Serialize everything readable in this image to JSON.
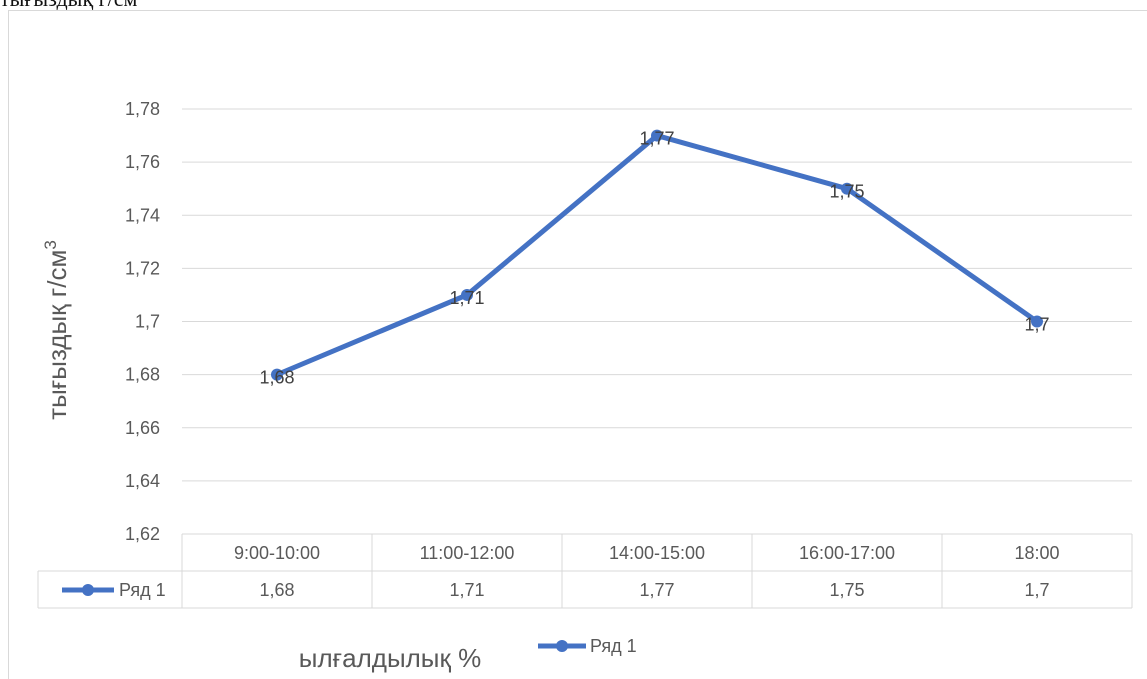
{
  "page": {
    "top_caption": "тығыздық г/см"
  },
  "chart_data": {
    "type": "line",
    "categories": [
      "9:00-10:00",
      "11:00-12:00",
      "14:00-15:00",
      "16:00-17:00",
      "18:00"
    ],
    "series": [
      {
        "name": "Ряд 1",
        "values": [
          1.68,
          1.71,
          1.77,
          1.75,
          1.7
        ],
        "color": "#4472C4"
      }
    ],
    "data_labels": [
      "1,68",
      "1,71",
      "1,77",
      "1,75",
      "1,7"
    ],
    "y_ticks": [
      "1,62",
      "1,64",
      "1,66",
      "1,68",
      "1,7",
      "1,72",
      "1,74",
      "1,76",
      "1,78"
    ],
    "ylim": [
      1.62,
      1.78
    ],
    "ylabel": "тығыздық г/см",
    "ylabel_sup": "3",
    "xlabel": "ылғалдылық %",
    "legend_label": "Ряд 1",
    "grid": true,
    "legend_position": "bottom",
    "data_table": true,
    "gridline_color": "#d9d9d9",
    "axis_text_color": "#595959"
  }
}
